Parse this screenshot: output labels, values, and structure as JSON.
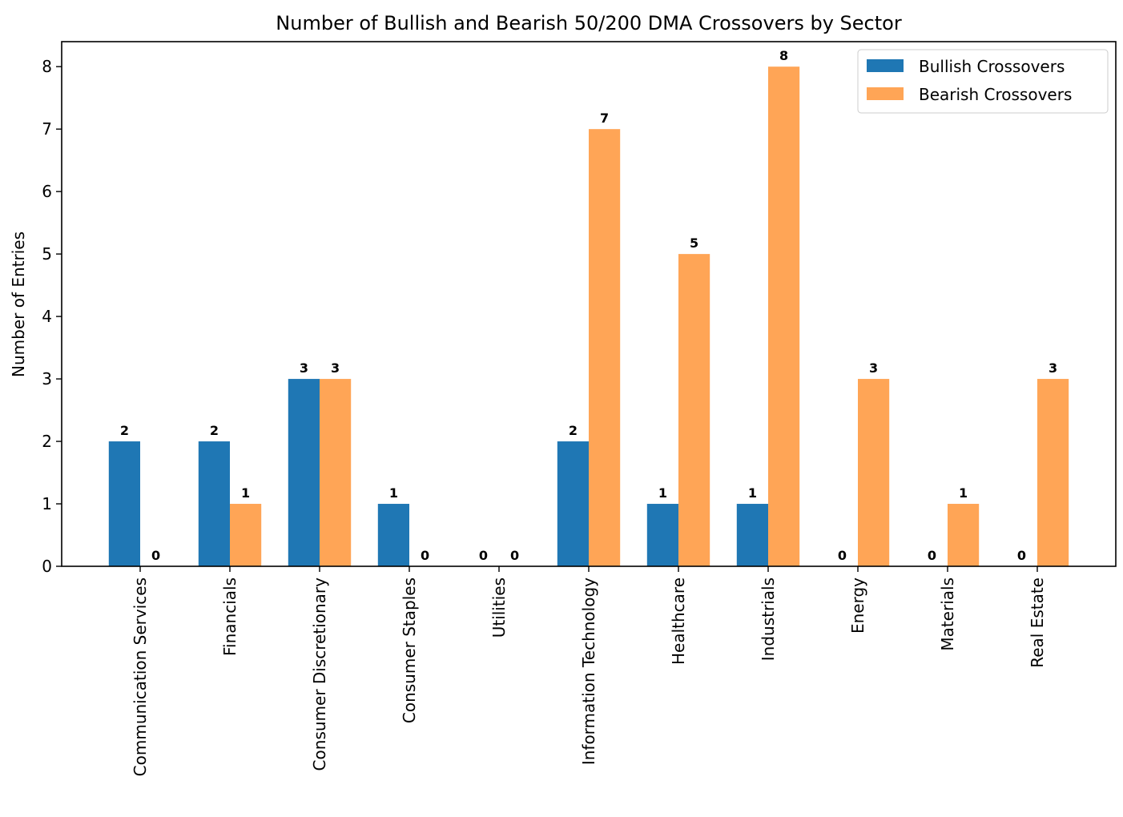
{
  "chart_data": {
    "type": "bar",
    "title": "Number of Bullish and Bearish 50/200 DMA Crossovers by Sector",
    "xlabel": "",
    "ylabel": "Number of Entries",
    "ylim": [
      0,
      8.4
    ],
    "yticks": [
      0,
      1,
      2,
      3,
      4,
      5,
      6,
      7,
      8
    ],
    "grid": false,
    "legend_position": "top-right",
    "categories": [
      "Communication Services",
      "Financials",
      "Consumer Discretionary",
      "Consumer Staples",
      "Utilities",
      "Information Technology",
      "Healthcare",
      "Industrials",
      "Energy",
      "Materials",
      "Real Estate"
    ],
    "series": [
      {
        "name": "Bullish Crossovers",
        "color": "#1f77b4",
        "values": [
          2,
          2,
          3,
          1,
          0,
          2,
          1,
          1,
          0,
          0,
          0
        ]
      },
      {
        "name": "Bearish Crossovers",
        "color": "#ffa556",
        "values": [
          0,
          1,
          3,
          0,
          0,
          7,
          5,
          8,
          3,
          1,
          3
        ]
      }
    ]
  }
}
